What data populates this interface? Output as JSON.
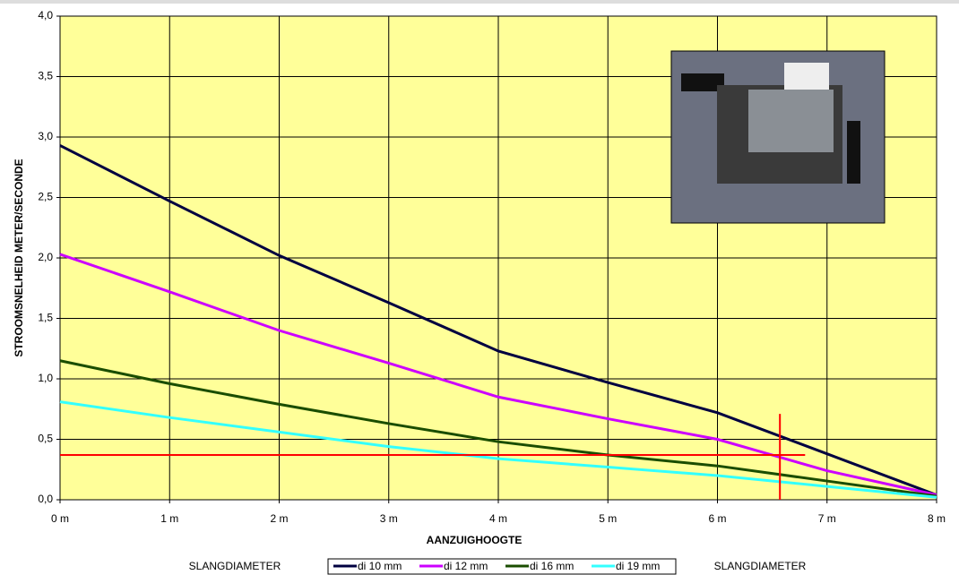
{
  "chart_data": {
    "type": "line",
    "x_label": "AANZUIGHOOGTE",
    "y_label": "STROOMSNELHEID METER/SECONDE",
    "x": [
      0,
      1,
      2,
      3,
      4,
      5,
      6,
      7,
      8
    ],
    "series": [
      {
        "name": "di 10 mm",
        "color": "#000040",
        "values": [
          2.93,
          2.47,
          2.02,
          1.63,
          1.23,
          0.97,
          0.72,
          0.38,
          0.04
        ]
      },
      {
        "name": "di 12 mm",
        "color": "#cc00ff",
        "values": [
          2.03,
          1.72,
          1.4,
          1.13,
          0.85,
          0.67,
          0.5,
          0.24,
          0.04
        ]
      },
      {
        "name": "di 16 mm",
        "color": "#1a4d00",
        "values": [
          1.15,
          0.96,
          0.79,
          0.63,
          0.48,
          0.37,
          0.28,
          0.155,
          0.03
        ]
      },
      {
        "name": "di 19 mm",
        "color": "#33ffff",
        "values": [
          0.81,
          0.68,
          0.56,
          0.44,
          0.34,
          0.27,
          0.2,
          0.11,
          0.02
        ]
      }
    ],
    "xlim": [
      0,
      8
    ],
    "ylim": [
      0,
      4
    ],
    "xticks": [
      {
        "value": 0,
        "label": "0 m"
      },
      {
        "value": 1,
        "label": "1 m"
      },
      {
        "value": 2,
        "label": "2 m"
      },
      {
        "value": 3,
        "label": "3 m"
      },
      {
        "value": 4,
        "label": "4 m"
      },
      {
        "value": 5,
        "label": "5 m"
      },
      {
        "value": 6,
        "label": "6 m"
      },
      {
        "value": 7,
        "label": "7 m"
      },
      {
        "value": 8,
        "label": "8 m"
      }
    ],
    "yticks": [
      {
        "value": 0,
        "label": "0,0"
      },
      {
        "value": 0.5,
        "label": "0,5"
      },
      {
        "value": 1,
        "label": "1,0"
      },
      {
        "value": 1.5,
        "label": "1,5"
      },
      {
        "value": 2,
        "label": "2,0"
      },
      {
        "value": 2.5,
        "label": "2,5"
      },
      {
        "value": 3,
        "label": "3,0"
      },
      {
        "value": 3.5,
        "label": "3,5"
      },
      {
        "value": 4,
        "label": "4,0"
      }
    ],
    "grid": true,
    "reference_lines": {
      "color": "#ff0000",
      "horizontal": {
        "y": 0.37,
        "x": [
          0,
          6.8
        ]
      },
      "vertical": {
        "x": 6.57,
        "y": [
          0,
          0.71
        ]
      }
    },
    "legend_side_labels": [
      "SLANGDIAMETER",
      "SLANGDIAMETER"
    ]
  }
}
